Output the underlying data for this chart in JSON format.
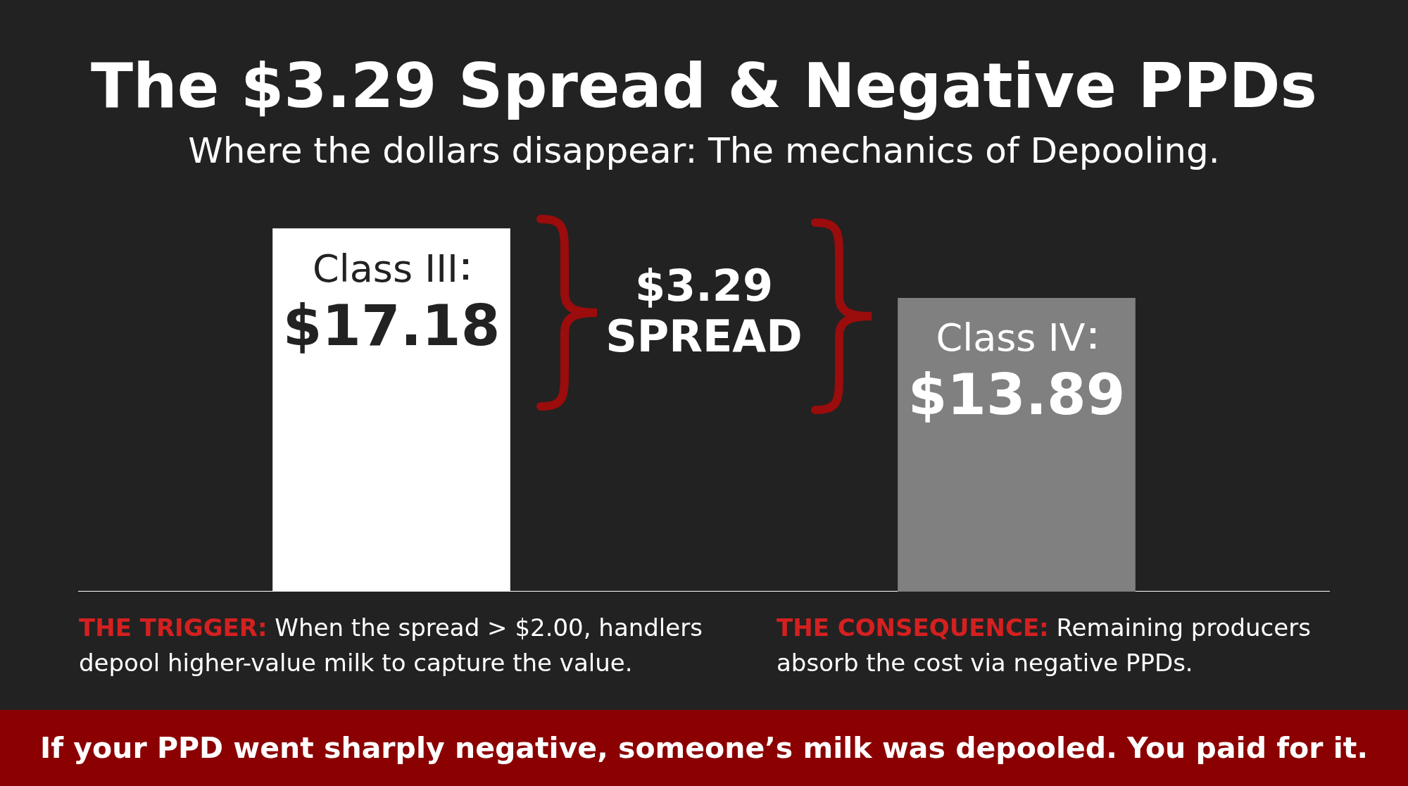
{
  "chart_data": {
    "type": "bar",
    "title": "The $3.29 Spread & Negative PPDs",
    "subtitle": "Where the dollars disappear: The mechanics of Depooling.",
    "categories": [
      "Class III",
      "Class IV"
    ],
    "values": [
      17.18,
      13.89
    ],
    "colors": [
      "#ffffff",
      "#808080"
    ],
    "value_labels": [
      "$17.18",
      "$13.89"
    ],
    "tick_labels": false,
    "annotations": [
      "$3.29 SPREAD",
      "THE TRIGGER: When the spread > $2.00, handlers depool higher-value milk to capture the value.",
      "THE CONSEQUENCE: Remaining producers absorb the cost via negative PPDs.",
      "If your PPD went sharply negative, someone’s milk was depooled. You paid for it."
    ]
  }
}
